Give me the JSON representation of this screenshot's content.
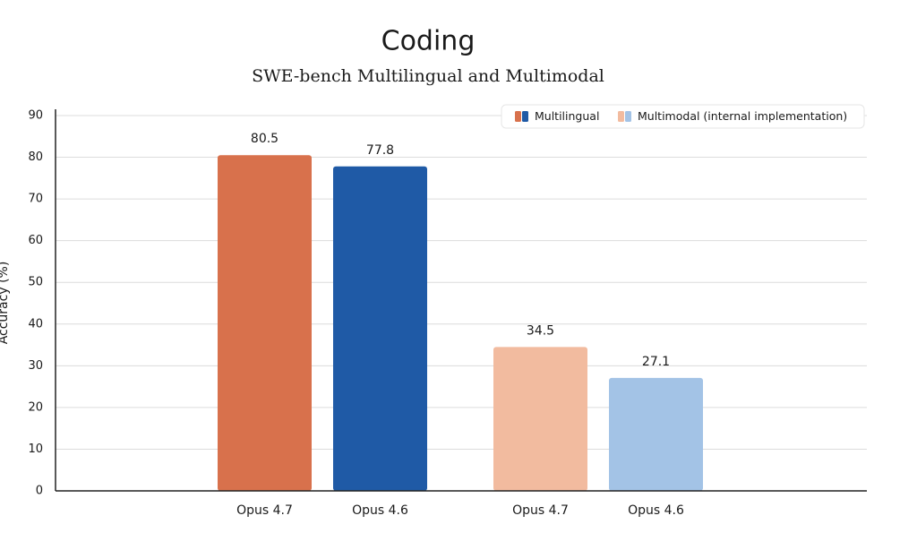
{
  "chart_data": {
    "type": "bar",
    "title": "Coding",
    "subtitle": "SWE-bench Multilingual and Multimodal",
    "y_label": "Accuracy (%)",
    "groups": [
      {
        "name": "Multilingual",
        "categories": [
          "Opus 4.7",
          "Opus 4.6"
        ],
        "values": [
          80.5,
          77.8
        ],
        "colors": [
          "#d8714c",
          "#1f5aa6"
        ]
      },
      {
        "name": "Multimodal (internal implementation)",
        "categories": [
          "Opus 4.7",
          "Opus 4.6"
        ],
        "values": [
          34.5,
          27.1
        ],
        "colors": [
          "#f2bb9f",
          "#a3c3e6"
        ]
      }
    ],
    "ylim": [
      0,
      90
    ],
    "yticks": [
      0,
      10,
      20,
      30,
      40,
      50,
      60,
      70,
      80,
      90
    ],
    "grid": true,
    "legend": "top-right"
  }
}
